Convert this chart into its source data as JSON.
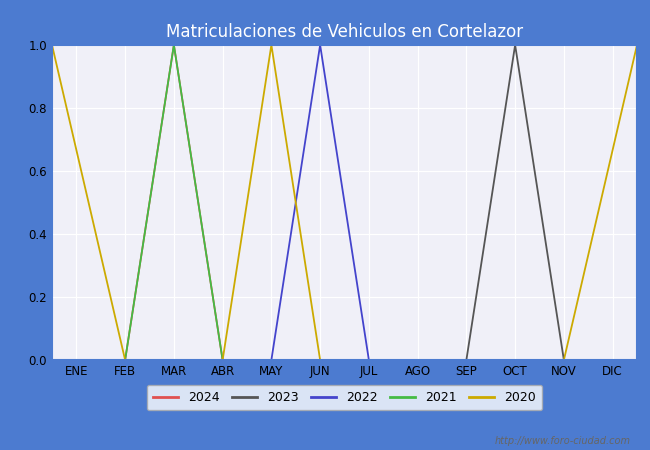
{
  "title": "Matriculaciones de Vehiculos en Cortelazor",
  "title_color": "white",
  "title_bg_color": "#4c7bd0",
  "fig_bg_color": "#4c7bd0",
  "plot_bg_color": "#f0f0f8",
  "months": [
    "ENE",
    "FEB",
    "MAR",
    "ABR",
    "MAY",
    "JUN",
    "JUL",
    "AGO",
    "SEP",
    "OCT",
    "NOV",
    "DIC"
  ],
  "month_indices": [
    1,
    2,
    3,
    4,
    5,
    6,
    7,
    8,
    9,
    10,
    11,
    12
  ],
  "series": [
    {
      "label": "2024",
      "color": "#e05050",
      "data": [
        [
          2,
          0
        ],
        [
          3,
          1.0
        ],
        [
          4,
          0
        ]
      ]
    },
    {
      "label": "2023",
      "color": "#555555",
      "data": [
        [
          9,
          0
        ],
        [
          10,
          1.0
        ],
        [
          11,
          0
        ]
      ]
    },
    {
      "label": "2022",
      "color": "#4444cc",
      "data": [
        [
          5,
          0
        ],
        [
          6,
          1.0
        ],
        [
          7,
          0
        ]
      ]
    },
    {
      "label": "2021",
      "color": "#44bb44",
      "data": [
        [
          2,
          0
        ],
        [
          3,
          1.0
        ],
        [
          4,
          0
        ]
      ]
    },
    {
      "label": "2020",
      "color": "#ccaa00",
      "data": [
        [
          0.5,
          1.0
        ],
        [
          2,
          0
        ],
        [
          4,
          0
        ],
        [
          5,
          1.0
        ],
        [
          6,
          0
        ],
        [
          11,
          0
        ],
        [
          12.5,
          1.0
        ]
      ]
    }
  ],
  "ylim": [
    0.0,
    1.0
  ],
  "yticks": [
    0.0,
    0.2,
    0.4,
    0.6,
    0.8,
    1.0
  ],
  "watermark": "http://www.foro-ciudad.com",
  "border_color": "#4c7bd0",
  "legend_edge_color": "#aaaaaa"
}
